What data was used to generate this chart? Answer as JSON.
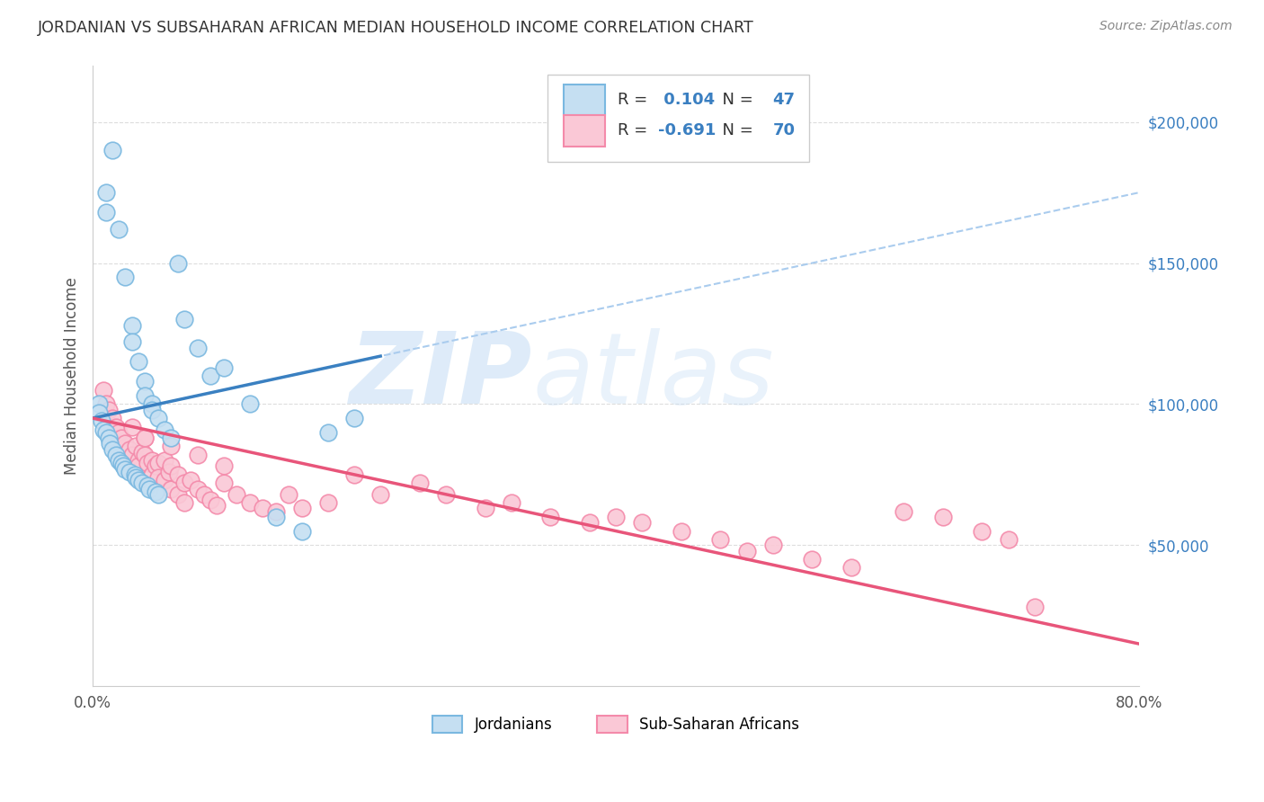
{
  "title": "JORDANIAN VS SUBSAHARAN AFRICAN MEDIAN HOUSEHOLD INCOME CORRELATION CHART",
  "source": "Source: ZipAtlas.com",
  "ylabel": "Median Household Income",
  "xlim": [
    0.0,
    0.8
  ],
  "ylim": [
    0,
    220000
  ],
  "jordan_color": "#7ab8e0",
  "jordan_fill": "#c5dff2",
  "subsaharan_color": "#f48aaa",
  "subsaharan_fill": "#fac8d6",
  "trendline_jordan_solid_color": "#3a80c1",
  "trendline_jordan_dashed_color": "#aaccee",
  "trendline_subsaharan_color": "#e8557a",
  "R_jordan": 0.104,
  "N_jordan": 47,
  "R_subsaharan": -0.691,
  "N_subsaharan": 70,
  "jordan_x": [
    0.005,
    0.005,
    0.007,
    0.008,
    0.01,
    0.01,
    0.01,
    0.012,
    0.013,
    0.015,
    0.015,
    0.018,
    0.02,
    0.02,
    0.022,
    0.023,
    0.025,
    0.025,
    0.028,
    0.03,
    0.03,
    0.032,
    0.033,
    0.035,
    0.035,
    0.038,
    0.04,
    0.04,
    0.042,
    0.043,
    0.045,
    0.045,
    0.048,
    0.05,
    0.05,
    0.055,
    0.06,
    0.065,
    0.07,
    0.08,
    0.09,
    0.1,
    0.12,
    0.14,
    0.16,
    0.18,
    0.2
  ],
  "jordan_y": [
    100000,
    97000,
    94000,
    91000,
    175000,
    168000,
    90000,
    88000,
    86000,
    190000,
    84000,
    82000,
    162000,
    80000,
    79000,
    78000,
    145000,
    77000,
    76000,
    128000,
    122000,
    75000,
    74000,
    115000,
    73000,
    72000,
    108000,
    103000,
    71000,
    70000,
    100000,
    98000,
    69000,
    95000,
    68000,
    91000,
    88000,
    150000,
    130000,
    120000,
    110000,
    113000,
    100000,
    60000,
    55000,
    90000,
    95000
  ],
  "subsaharan_x": [
    0.008,
    0.01,
    0.012,
    0.015,
    0.018,
    0.02,
    0.022,
    0.025,
    0.028,
    0.03,
    0.03,
    0.033,
    0.035,
    0.035,
    0.038,
    0.04,
    0.04,
    0.042,
    0.045,
    0.045,
    0.048,
    0.05,
    0.05,
    0.055,
    0.055,
    0.058,
    0.06,
    0.06,
    0.065,
    0.065,
    0.07,
    0.07,
    0.075,
    0.08,
    0.085,
    0.09,
    0.095,
    0.1,
    0.11,
    0.12,
    0.13,
    0.14,
    0.15,
    0.16,
    0.18,
    0.2,
    0.22,
    0.25,
    0.27,
    0.3,
    0.32,
    0.35,
    0.38,
    0.4,
    0.42,
    0.45,
    0.48,
    0.5,
    0.52,
    0.55,
    0.58,
    0.62,
    0.65,
    0.68,
    0.7,
    0.72,
    0.04,
    0.06,
    0.08,
    0.1
  ],
  "subsaharan_y": [
    105000,
    100000,
    98000,
    95000,
    92000,
    90000,
    88000,
    86000,
    84000,
    92000,
    82000,
    85000,
    80000,
    78000,
    83000,
    88000,
    82000,
    79000,
    80000,
    75000,
    78000,
    79000,
    74000,
    80000,
    73000,
    76000,
    78000,
    70000,
    75000,
    68000,
    72000,
    65000,
    73000,
    70000,
    68000,
    66000,
    64000,
    72000,
    68000,
    65000,
    63000,
    62000,
    68000,
    63000,
    65000,
    75000,
    68000,
    72000,
    68000,
    63000,
    65000,
    60000,
    58000,
    60000,
    58000,
    55000,
    52000,
    48000,
    50000,
    45000,
    42000,
    62000,
    60000,
    55000,
    52000,
    28000,
    88000,
    85000,
    82000,
    78000
  ],
  "watermark_zip": "ZIP",
  "watermark_atlas": "atlas",
  "background_color": "#ffffff",
  "grid_color": "#dddddd"
}
